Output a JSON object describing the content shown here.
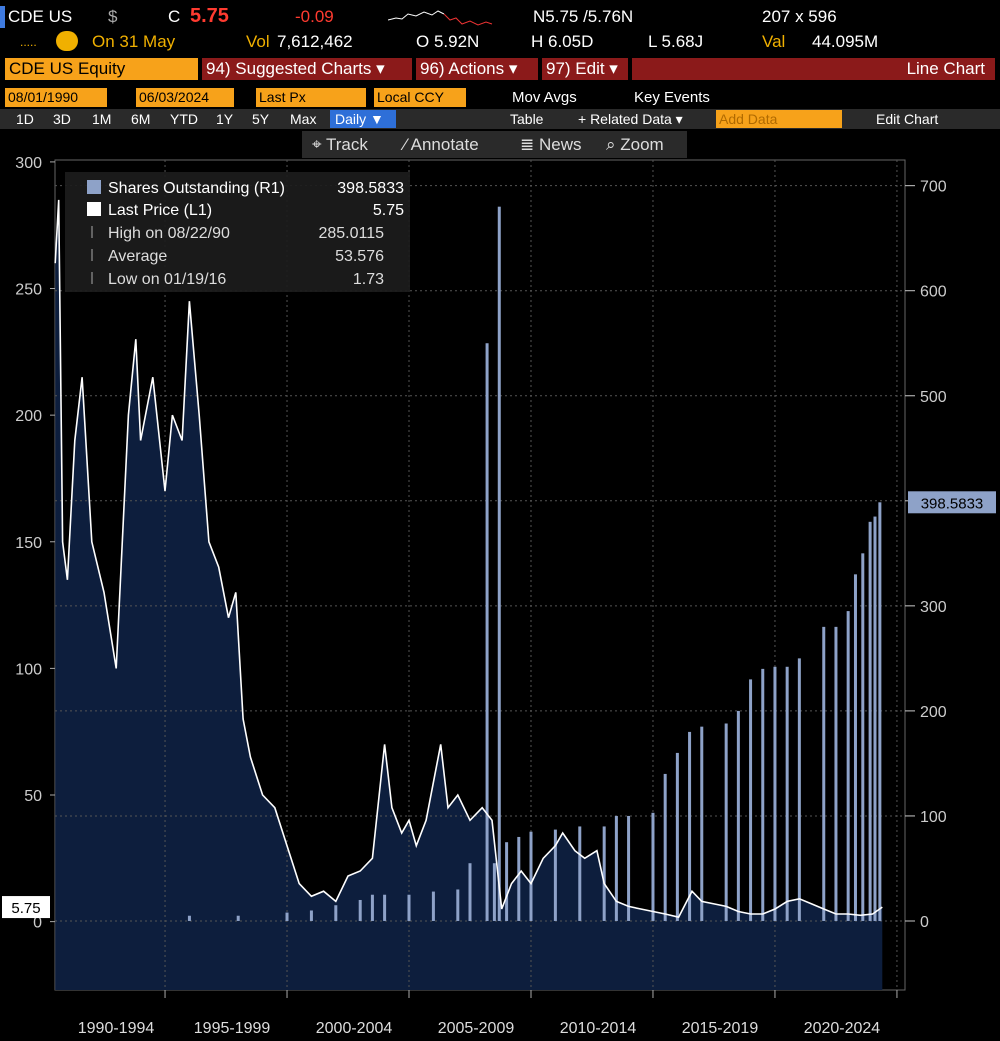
{
  "header": {
    "ticker": "CDE US",
    "currency": "$",
    "close_label": "C",
    "close": "5.75",
    "change": "-0.09",
    "bid_ask": "N5.75 /5.76N",
    "size": "207 x 596",
    "date": "On 31 May",
    "vol_label": "Vol",
    "volume": "7,612,462",
    "open": "O 5.92N",
    "high": "H 6.05D",
    "low": "L 5.68J",
    "val_label": "Val",
    "value": "44.095M"
  },
  "toolbar": {
    "security": "CDE US Equity",
    "menus": [
      "94) Suggested Charts ▾",
      "96) Actions ▾",
      "97) Edit ▾"
    ],
    "chart_type": "Line Chart",
    "start_date": "08/01/1990",
    "end_date": "06/03/2024",
    "field": "Last Px",
    "ccy": "Local CCY",
    "mov_avgs": "Mov Avgs",
    "key_events": "Key Events",
    "ranges": [
      "1D",
      "3D",
      "1M",
      "6M",
      "YTD",
      "1Y",
      "5Y",
      "Max"
    ],
    "frequency": "Daily ▼",
    "table": "Table",
    "related": "+ Related Data ▾",
    "add_data": "Add Data",
    "edit_chart": "Edit Chart",
    "tools": [
      "⌖ Track",
      "⁄ Annotate",
      "≣ News",
      "⌕ Zoom"
    ]
  },
  "chart_data": {
    "type": "line",
    "xlim": [
      1990.49,
      2025.33
    ],
    "xticks": [
      1990,
      1995,
      2000,
      2005,
      2010,
      2015,
      2020,
      2025
    ],
    "periods": [
      "1990-1994",
      "1995-1999",
      "2000-2004",
      "2005-2009",
      "2010-2014",
      "2015-2019",
      "2020-2024"
    ],
    "ylim": [
      -27,
      312.6
    ],
    "yticks": [
      0,
      50,
      100,
      150,
      200,
      250,
      300
    ],
    "y2lim": [
      -65.7,
      753
    ],
    "y2ticks": [
      0,
      100,
      200,
      300,
      400,
      500,
      600,
      700
    ],
    "grid": true,
    "series": [
      {
        "name": "Shares Outstanding (R1)",
        "type": "bar",
        "axis": "y2",
        "color": "#8ea2c8",
        "x": [
          1996.0,
          1998.0,
          2000.0,
          2001.0,
          2002.0,
          2003.0,
          2003.5,
          2004.0,
          2005.0,
          2006.0,
          2007.0,
          2007.5,
          2008.2,
          2008.5,
          2008.7,
          2009.0,
          2009.5,
          2010.0,
          2011.0,
          2012.0,
          2013.0,
          2013.5,
          2014.0,
          2015.0,
          2015.5,
          2016.0,
          2016.5,
          2017.0,
          2018.0,
          2018.5,
          2019.0,
          2019.5,
          2020.0,
          2020.5,
          2021.0,
          2022.0,
          2022.5,
          2023.0,
          2023.3,
          2023.6,
          2023.9,
          2024.1,
          2024.3
        ],
        "values": [
          5,
          5,
          8,
          10,
          15,
          20,
          25,
          25,
          25,
          28,
          30,
          55,
          550,
          55,
          680,
          75,
          80,
          85,
          87,
          90,
          90,
          100,
          100,
          103,
          140,
          160,
          180,
          185,
          188,
          200,
          230,
          240,
          242,
          242,
          250,
          280,
          280,
          295,
          330,
          350,
          380,
          385,
          398.5833
        ]
      },
      {
        "name": "Last Price (L1)",
        "type": "line",
        "axis": "y",
        "color": "#ffffff",
        "fill": "#0d1e3d",
        "x": [
          1990.5,
          1990.64,
          1990.8,
          1991.0,
          1991.3,
          1991.6,
          1992.0,
          1992.5,
          1993.0,
          1993.5,
          1993.8,
          1994.0,
          1994.5,
          1995.0,
          1995.3,
          1995.7,
          1996.0,
          1996.4,
          1996.8,
          1997.2,
          1997.6,
          1997.9,
          1998.2,
          1998.5,
          1999.0,
          1999.5,
          2000.0,
          2000.5,
          2001.0,
          2001.5,
          2002.0,
          2002.5,
          2003.0,
          2003.5,
          2004.0,
          2004.3,
          2004.7,
          2005.0,
          2005.3,
          2005.7,
          2006.0,
          2006.3,
          2006.6,
          2007.0,
          2007.5,
          2008.0,
          2008.4,
          2008.8,
          2009.2,
          2009.6,
          2010.0,
          2010.5,
          2011.0,
          2011.3,
          2011.8,
          2012.2,
          2012.7,
          2013.0,
          2013.5,
          2014.0,
          2014.5,
          2015.0,
          2015.5,
          2016.05,
          2016.6,
          2017.0,
          2017.5,
          2018.0,
          2018.5,
          2019.0,
          2019.5,
          2020.0,
          2020.5,
          2021.0,
          2021.5,
          2022.0,
          2022.5,
          2023.0,
          2023.5,
          2024.0,
          2024.4
        ],
        "values": [
          260,
          285.0115,
          150,
          135,
          190,
          215,
          150,
          130,
          100,
          200,
          230,
          190,
          215,
          170,
          200,
          190,
          245,
          200,
          150,
          140,
          120,
          130,
          80,
          65,
          50,
          45,
          30,
          15,
          10,
          12,
          8,
          18,
          20,
          25,
          70,
          45,
          35,
          40,
          30,
          40,
          55,
          70,
          45,
          50,
          40,
          45,
          40,
          5,
          15,
          20,
          15,
          25,
          30,
          35,
          28,
          25,
          28,
          15,
          8,
          6,
          5,
          4,
          3,
          1.73,
          12,
          8,
          7,
          6,
          4,
          3,
          3,
          5,
          8,
          9,
          7,
          5,
          3,
          3,
          2.5,
          3,
          5.75
        ]
      }
    ],
    "stats": [
      {
        "label": "High on 08/22/90",
        "value": 285.0115
      },
      {
        "label": "Average",
        "value": 53.576
      },
      {
        "label": "Low on 01/19/16",
        "value": 1.73
      }
    ]
  }
}
